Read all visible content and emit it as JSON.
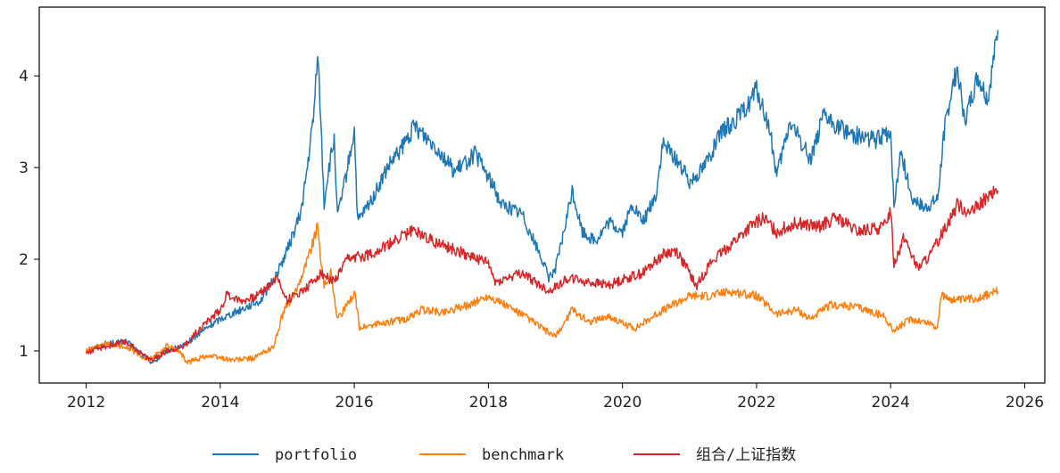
{
  "chart_data": {
    "type": "line",
    "title": "",
    "xlabel": "",
    "ylabel": "",
    "xlim": [
      2011.3,
      2026.3
    ],
    "ylim": [
      0.65,
      4.75
    ],
    "xticks": [
      2012,
      2014,
      2016,
      2018,
      2020,
      2022,
      2024,
      2026
    ],
    "xtick_labels": [
      "2012",
      "2014",
      "2016",
      "2018",
      "2020",
      "2022",
      "2024",
      "2026"
    ],
    "yticks": [
      1,
      2,
      3,
      4
    ],
    "ytick_labels": [
      "1",
      "2",
      "3",
      "4"
    ],
    "grid": false,
    "legend_position": "bottom-center",
    "series": [
      {
        "name": "portfolio",
        "color": "#1f77b4",
        "points": [
          [
            2012.0,
            1.0
          ],
          [
            2012.3,
            1.08
          ],
          [
            2012.6,
            1.1
          ],
          [
            2012.9,
            0.92
          ],
          [
            2013.0,
            0.87
          ],
          [
            2013.2,
            1.0
          ],
          [
            2013.45,
            1.05
          ],
          [
            2013.7,
            1.2
          ],
          [
            2014.0,
            1.35
          ],
          [
            2014.3,
            1.45
          ],
          [
            2014.6,
            1.55
          ],
          [
            2014.85,
            1.85
          ],
          [
            2015.0,
            2.1
          ],
          [
            2015.2,
            2.5
          ],
          [
            2015.3,
            3.0
          ],
          [
            2015.4,
            3.6
          ],
          [
            2015.45,
            4.3
          ],
          [
            2015.5,
            3.5
          ],
          [
            2015.55,
            2.6
          ],
          [
            2015.6,
            2.9
          ],
          [
            2015.7,
            3.3
          ],
          [
            2015.75,
            2.45
          ],
          [
            2015.9,
            3.0
          ],
          [
            2016.0,
            3.4
          ],
          [
            2016.05,
            2.4
          ],
          [
            2016.3,
            2.7
          ],
          [
            2016.5,
            3.0
          ],
          [
            2016.7,
            3.2
          ],
          [
            2016.9,
            3.45
          ],
          [
            2017.2,
            3.25
          ],
          [
            2017.5,
            2.95
          ],
          [
            2017.8,
            3.15
          ],
          [
            2018.0,
            2.9
          ],
          [
            2018.2,
            2.6
          ],
          [
            2018.5,
            2.5
          ],
          [
            2018.8,
            2.0
          ],
          [
            2018.9,
            1.8
          ],
          [
            2019.0,
            1.9
          ],
          [
            2019.1,
            2.2
          ],
          [
            2019.25,
            2.75
          ],
          [
            2019.4,
            2.3
          ],
          [
            2019.6,
            2.2
          ],
          [
            2019.8,
            2.4
          ],
          [
            2020.0,
            2.3
          ],
          [
            2020.15,
            2.6
          ],
          [
            2020.3,
            2.4
          ],
          [
            2020.5,
            2.7
          ],
          [
            2020.6,
            3.25
          ],
          [
            2020.8,
            3.1
          ],
          [
            2021.0,
            2.85
          ],
          [
            2021.2,
            3.0
          ],
          [
            2021.5,
            3.4
          ],
          [
            2021.8,
            3.6
          ],
          [
            2022.0,
            3.85
          ],
          [
            2022.2,
            3.4
          ],
          [
            2022.3,
            2.9
          ],
          [
            2022.5,
            3.5
          ],
          [
            2022.8,
            3.1
          ],
          [
            2023.0,
            3.55
          ],
          [
            2023.2,
            3.45
          ],
          [
            2023.5,
            3.35
          ],
          [
            2023.8,
            3.3
          ],
          [
            2024.0,
            3.4
          ],
          [
            2024.05,
            2.55
          ],
          [
            2024.15,
            3.2
          ],
          [
            2024.3,
            2.7
          ],
          [
            2024.5,
            2.55
          ],
          [
            2024.7,
            2.65
          ],
          [
            2024.8,
            3.4
          ],
          [
            2024.9,
            3.8
          ],
          [
            2025.0,
            4.1
          ],
          [
            2025.1,
            3.5
          ],
          [
            2025.3,
            4.0
          ],
          [
            2025.45,
            3.75
          ],
          [
            2025.6,
            4.5
          ]
        ]
      },
      {
        "name": "benchmark",
        "color": "#ff7f0e",
        "points": [
          [
            2012.0,
            1.0
          ],
          [
            2012.3,
            1.07
          ],
          [
            2012.6,
            1.05
          ],
          [
            2012.9,
            0.9
          ],
          [
            2013.0,
            0.93
          ],
          [
            2013.2,
            1.05
          ],
          [
            2013.4,
            1.0
          ],
          [
            2013.5,
            0.87
          ],
          [
            2013.8,
            0.95
          ],
          [
            2014.2,
            0.9
          ],
          [
            2014.5,
            0.92
          ],
          [
            2014.8,
            1.05
          ],
          [
            2014.95,
            1.45
          ],
          [
            2015.1,
            1.6
          ],
          [
            2015.3,
            2.0
          ],
          [
            2015.45,
            2.35
          ],
          [
            2015.55,
            1.7
          ],
          [
            2015.65,
            1.85
          ],
          [
            2015.75,
            1.35
          ],
          [
            2015.9,
            1.5
          ],
          [
            2016.0,
            1.65
          ],
          [
            2016.08,
            1.25
          ],
          [
            2016.4,
            1.3
          ],
          [
            2016.8,
            1.35
          ],
          [
            2017.0,
            1.45
          ],
          [
            2017.3,
            1.42
          ],
          [
            2017.7,
            1.5
          ],
          [
            2018.0,
            1.6
          ],
          [
            2018.3,
            1.48
          ],
          [
            2018.6,
            1.35
          ],
          [
            2018.9,
            1.2
          ],
          [
            2019.0,
            1.15
          ],
          [
            2019.25,
            1.45
          ],
          [
            2019.5,
            1.32
          ],
          [
            2019.8,
            1.38
          ],
          [
            2020.0,
            1.3
          ],
          [
            2020.2,
            1.25
          ],
          [
            2020.5,
            1.4
          ],
          [
            2020.8,
            1.52
          ],
          [
            2021.0,
            1.6
          ],
          [
            2021.3,
            1.6
          ],
          [
            2021.6,
            1.65
          ],
          [
            2022.0,
            1.6
          ],
          [
            2022.3,
            1.4
          ],
          [
            2022.6,
            1.45
          ],
          [
            2022.8,
            1.35
          ],
          [
            2023.1,
            1.5
          ],
          [
            2023.5,
            1.48
          ],
          [
            2023.9,
            1.38
          ],
          [
            2024.05,
            1.22
          ],
          [
            2024.3,
            1.35
          ],
          [
            2024.6,
            1.3
          ],
          [
            2024.7,
            1.25
          ],
          [
            2024.75,
            1.6
          ],
          [
            2025.0,
            1.55
          ],
          [
            2025.3,
            1.58
          ],
          [
            2025.6,
            1.65
          ]
        ]
      },
      {
        "name": "组合/上证指数",
        "color": "#d62728",
        "points": [
          [
            2012.0,
            0.98
          ],
          [
            2012.3,
            1.05
          ],
          [
            2012.6,
            1.1
          ],
          [
            2012.9,
            0.93
          ],
          [
            2013.0,
            0.9
          ],
          [
            2013.2,
            1.0
          ],
          [
            2013.45,
            1.05
          ],
          [
            2013.7,
            1.25
          ],
          [
            2014.0,
            1.45
          ],
          [
            2014.1,
            1.62
          ],
          [
            2014.3,
            1.55
          ],
          [
            2014.5,
            1.58
          ],
          [
            2014.7,
            1.7
          ],
          [
            2014.85,
            1.8
          ],
          [
            2015.0,
            1.55
          ],
          [
            2015.3,
            1.7
          ],
          [
            2015.5,
            1.85
          ],
          [
            2015.7,
            1.75
          ],
          [
            2015.9,
            2.0
          ],
          [
            2016.2,
            2.05
          ],
          [
            2016.5,
            2.15
          ],
          [
            2016.7,
            2.25
          ],
          [
            2016.9,
            2.32
          ],
          [
            2017.3,
            2.15
          ],
          [
            2017.7,
            2.05
          ],
          [
            2018.0,
            1.95
          ],
          [
            2018.1,
            1.75
          ],
          [
            2018.5,
            1.85
          ],
          [
            2018.9,
            1.65
          ],
          [
            2019.2,
            1.8
          ],
          [
            2019.5,
            1.75
          ],
          [
            2019.8,
            1.72
          ],
          [
            2020.0,
            1.78
          ],
          [
            2020.3,
            1.85
          ],
          [
            2020.6,
            2.05
          ],
          [
            2020.8,
            2.1
          ],
          [
            2021.0,
            1.85
          ],
          [
            2021.1,
            1.7
          ],
          [
            2021.3,
            1.95
          ],
          [
            2021.6,
            2.15
          ],
          [
            2021.9,
            2.35
          ],
          [
            2022.1,
            2.45
          ],
          [
            2022.3,
            2.3
          ],
          [
            2022.6,
            2.4
          ],
          [
            2022.9,
            2.35
          ],
          [
            2023.2,
            2.45
          ],
          [
            2023.5,
            2.3
          ],
          [
            2023.9,
            2.35
          ],
          [
            2024.0,
            2.55
          ],
          [
            2024.05,
            1.95
          ],
          [
            2024.2,
            2.25
          ],
          [
            2024.4,
            1.9
          ],
          [
            2024.6,
            2.05
          ],
          [
            2024.85,
            2.4
          ],
          [
            2025.0,
            2.6
          ],
          [
            2025.2,
            2.5
          ],
          [
            2025.4,
            2.65
          ],
          [
            2025.6,
            2.75
          ]
        ]
      }
    ]
  }
}
